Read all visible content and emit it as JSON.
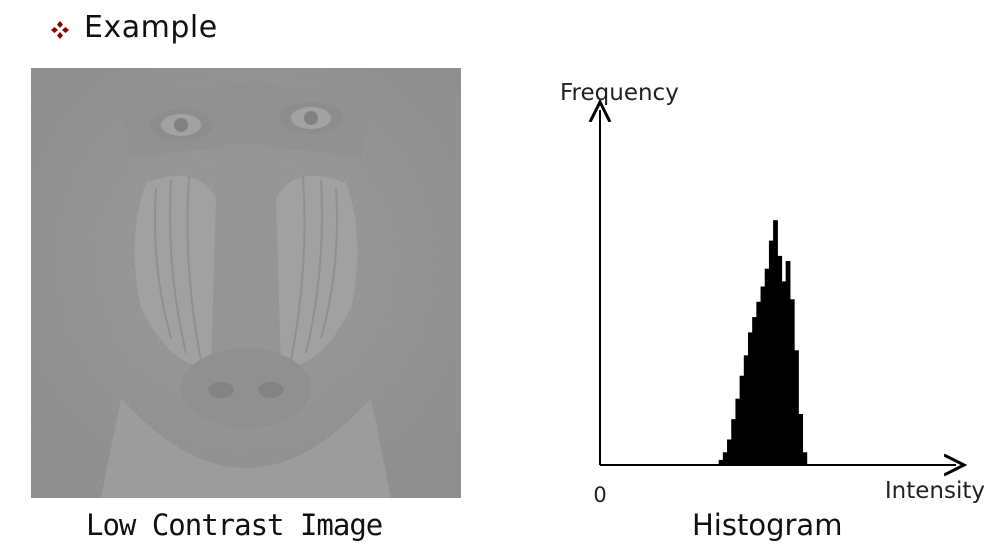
{
  "heading": {
    "bullet_icon": "diamond-bullet-icon",
    "bullet_color": "#8b0000",
    "text": "Example"
  },
  "image_caption": "Low Contrast Image",
  "histogram_caption": "Histogram",
  "chart_data": {
    "type": "bar",
    "title": "Histogram",
    "ylabel": "Frequency",
    "xlabel": "Intensity",
    "x_origin_label": "0",
    "xlim": [
      0,
      255
    ],
    "ylim": [
      0,
      100
    ],
    "grid": false,
    "bar_color": "#000000",
    "x": [
      85,
      88,
      91,
      94,
      97,
      100,
      103,
      106,
      109,
      112,
      115,
      118,
      121,
      124,
      127,
      130,
      133,
      136,
      139,
      142,
      145
    ],
    "values": [
      2,
      5,
      10,
      18,
      26,
      35,
      43,
      52,
      58,
      64,
      70,
      77,
      88,
      96,
      82,
      72,
      80,
      65,
      45,
      20,
      5
    ]
  }
}
